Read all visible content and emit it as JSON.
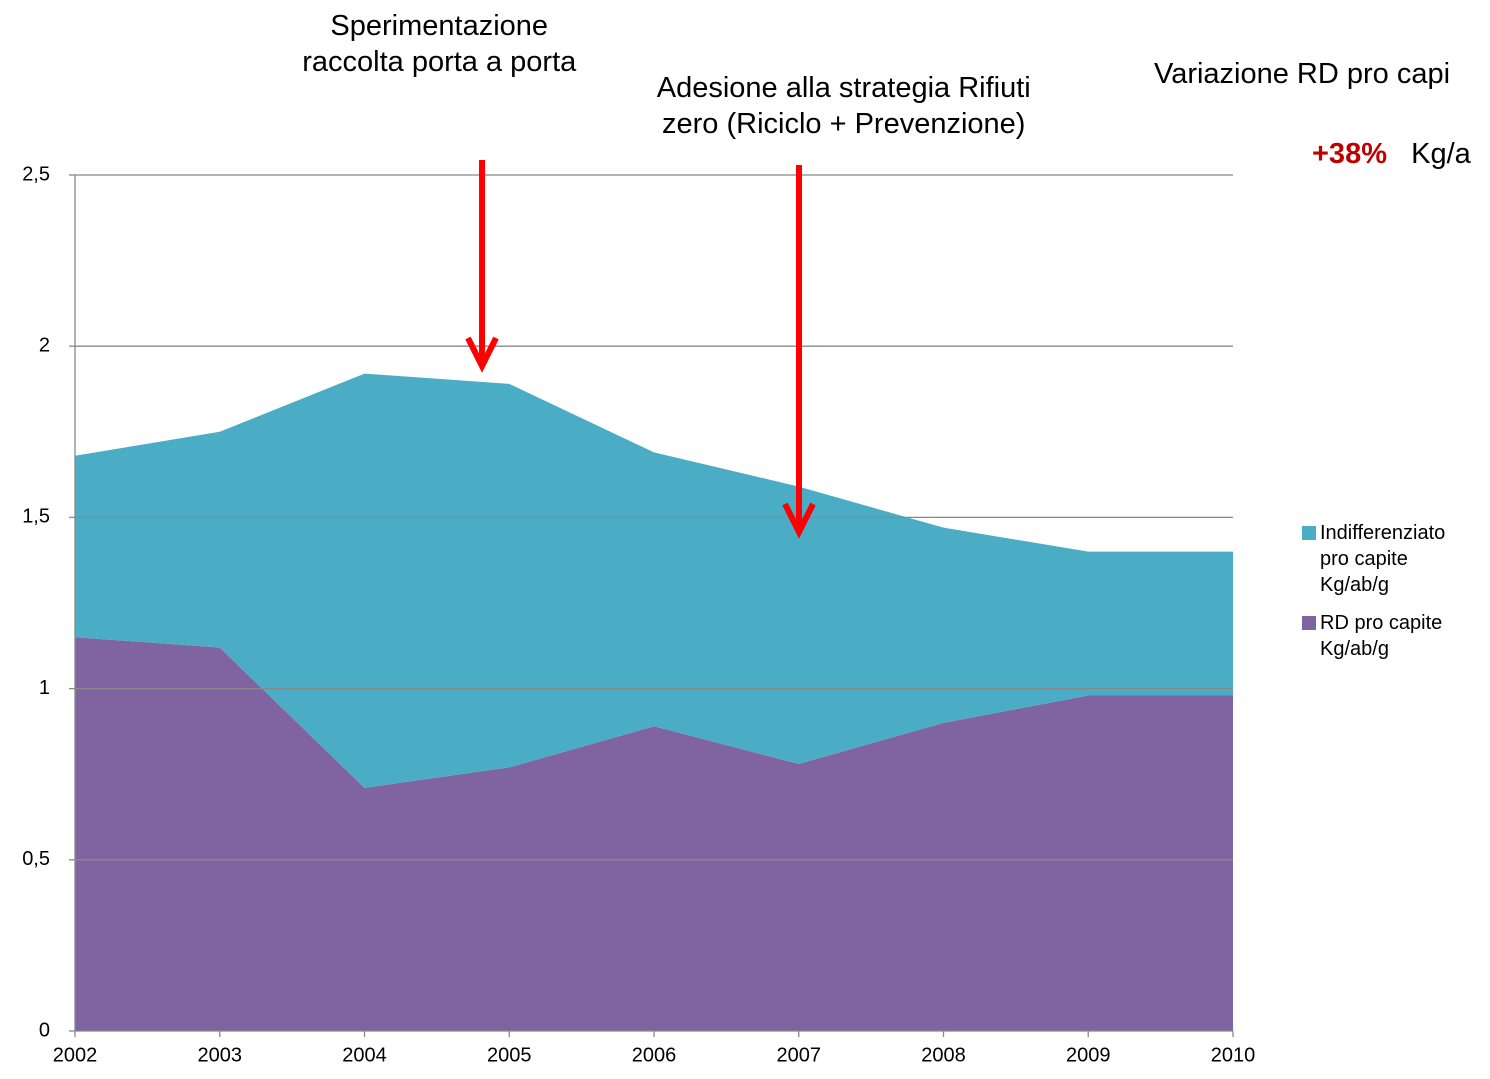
{
  "chart_data": {
    "type": "stacked-area",
    "categories": [
      "2002",
      "2003",
      "2004",
      "2005",
      "2006",
      "2007",
      "2008",
      "2009",
      "2010"
    ],
    "series": [
      {
        "name": "RD pro capite\nKg/ab/g",
        "color": "#8064a2",
        "values": [
          1.15,
          1.12,
          0.71,
          0.77,
          0.89,
          0.78,
          0.9,
          0.98,
          0.98
        ]
      },
      {
        "name": "Indifferenziato\n pro capite\nKg/ab/g",
        "color": "#4bacc6",
        "values": [
          0.53,
          0.63,
          1.21,
          1.12,
          0.8,
          0.81,
          0.57,
          0.42,
          0.42
        ]
      }
    ],
    "ylim": [
      0,
      2.5
    ],
    "yticks": [
      0,
      {
        "value": 0.5,
        "label": "0,5"
      },
      1,
      {
        "value": 1.5,
        "label": "1,5"
      },
      2,
      {
        "value": 2.5,
        "label": "2,5"
      }
    ],
    "grid": true,
    "legend": "right",
    "annotations": [
      {
        "text": "Sperimentazione\nraccolta porta a porta",
        "x": "2005"
      },
      {
        "text": "Adesione alla strategia Rifiuti\nzero  (Riciclo + Prevenzione)",
        "x": "2007"
      }
    ],
    "side_note": {
      "headline": "Variazione RD pro capi",
      "change": "+38%",
      "unit": "Kg/a"
    }
  }
}
